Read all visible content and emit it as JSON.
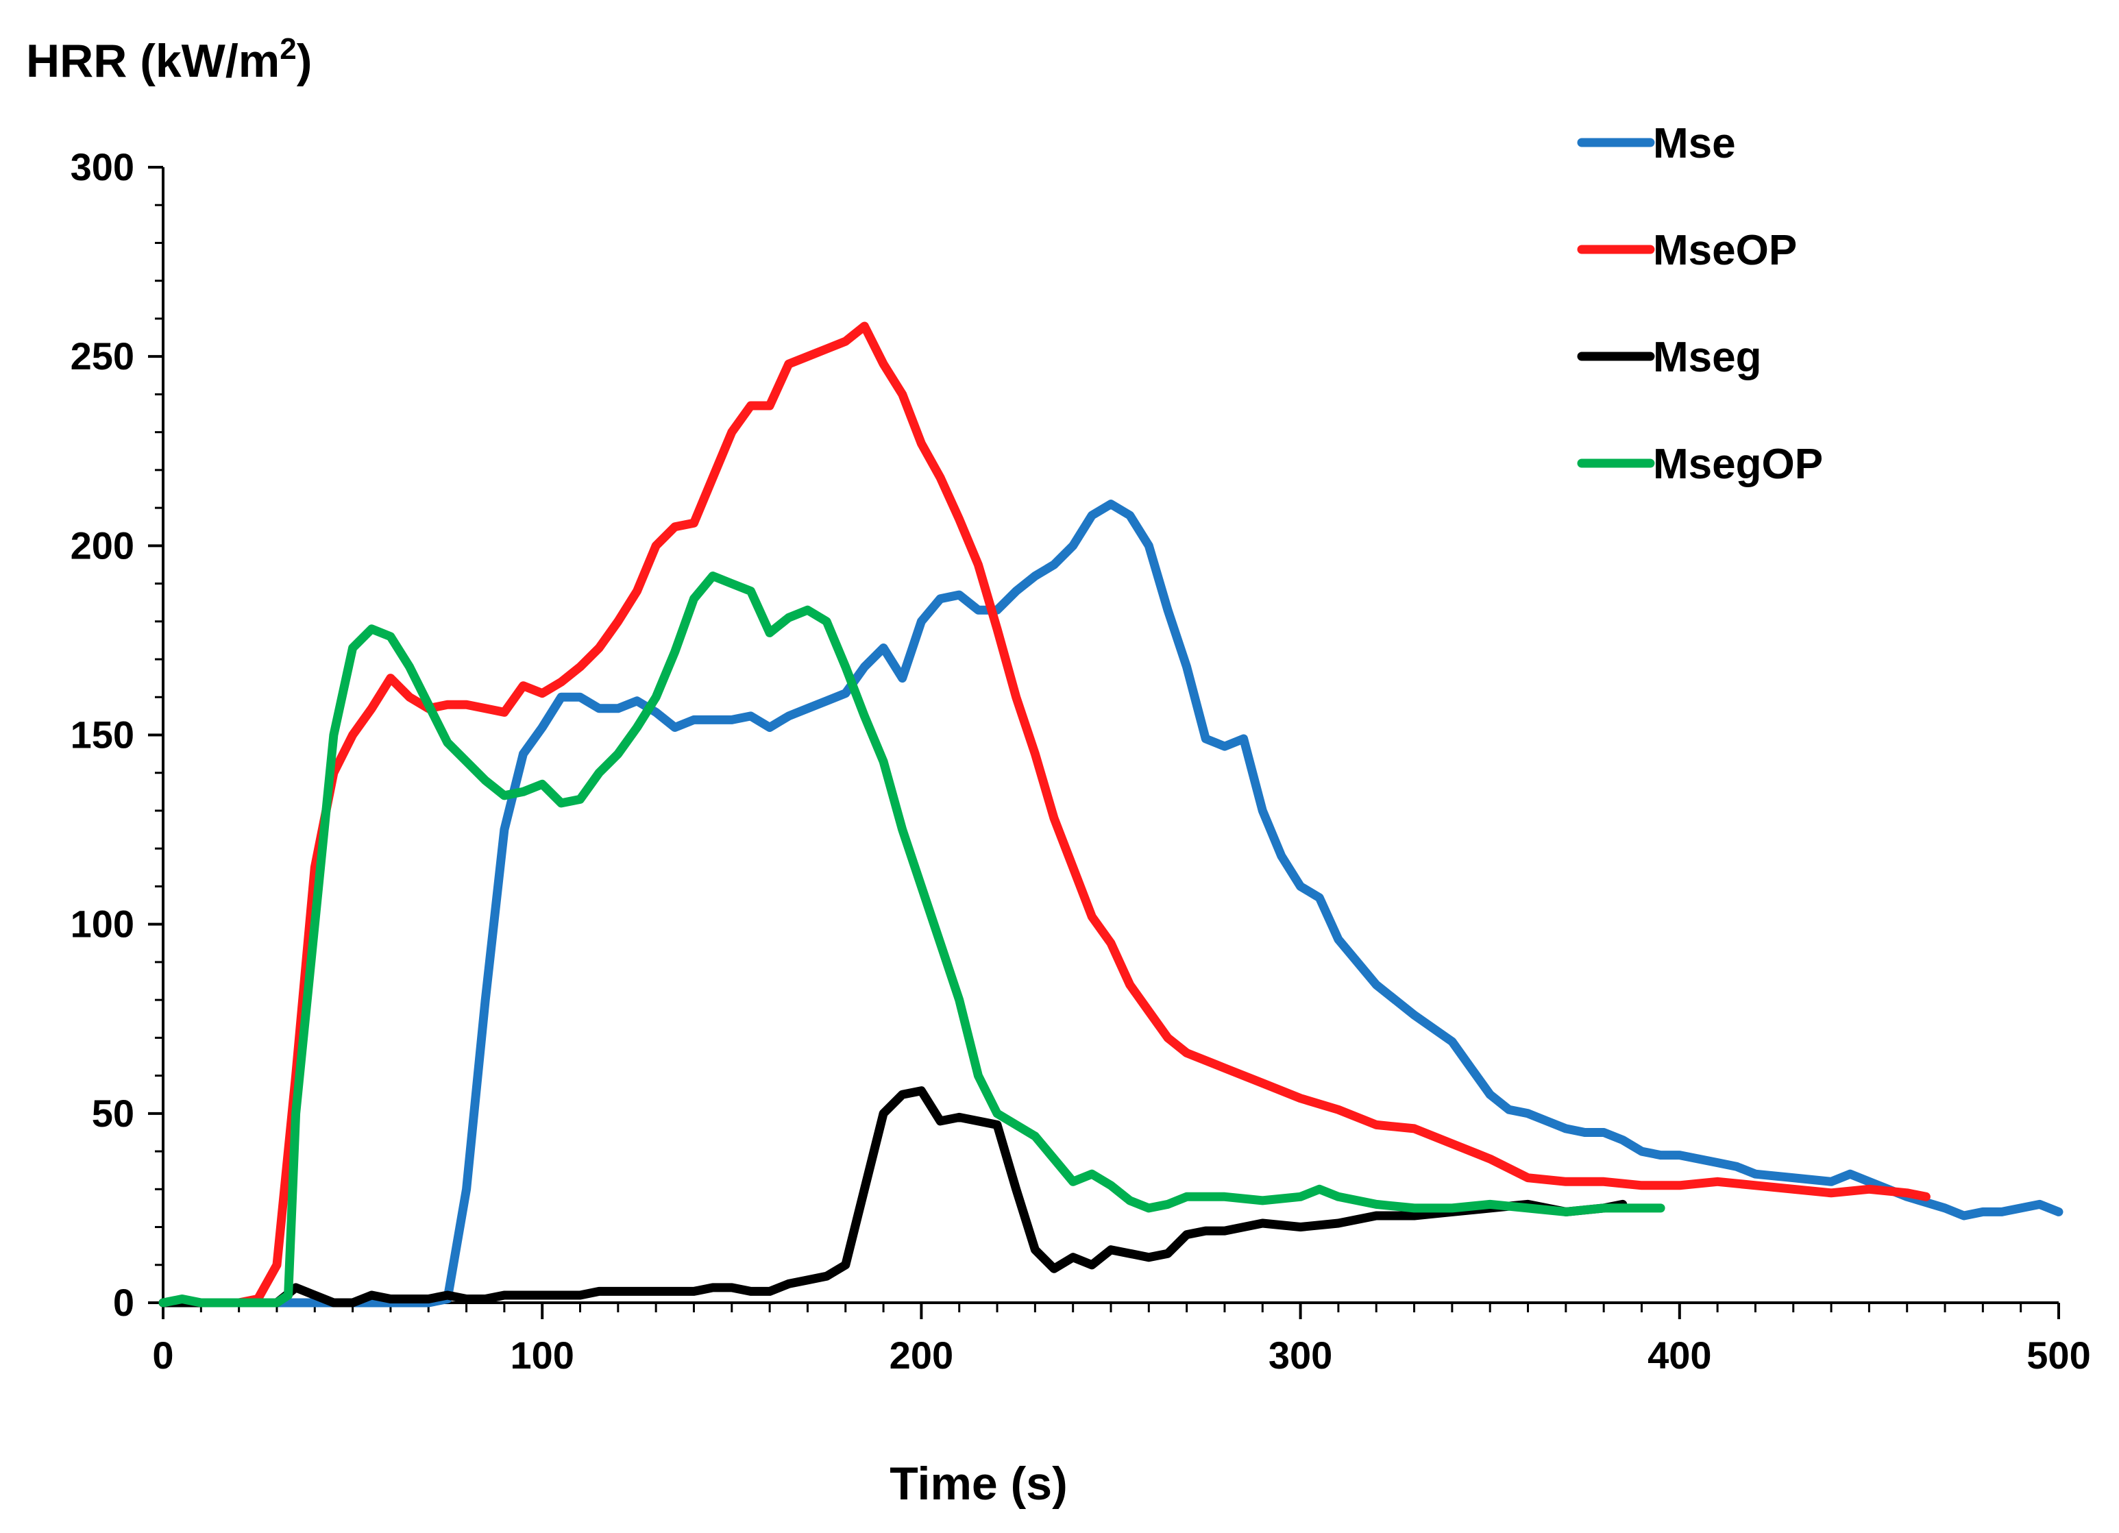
{
  "chart_data": {
    "type": "line",
    "title": "",
    "ylabel_main": "HRR (kW/m",
    "ylabel_sup": "2",
    "ylabel_end": ")",
    "xlabel": "Time (s)",
    "xlim": [
      0,
      500
    ],
    "ylim": [
      0,
      300
    ],
    "xticks": [
      0,
      100,
      200,
      300,
      400,
      500
    ],
    "yticks": [
      0,
      50,
      100,
      150,
      200,
      250,
      300
    ],
    "xtick_labels": [
      "0",
      "100",
      "200",
      "300",
      "400",
      "500"
    ],
    "ytick_labels": [
      "0",
      "50",
      "100",
      "150",
      "200",
      "250",
      "300"
    ],
    "grid": false,
    "legend_position": "top-right",
    "series": [
      {
        "name": "Mse",
        "color": "#1f77c4",
        "x": [
          0,
          5,
          10,
          20,
          30,
          40,
          50,
          60,
          70,
          75,
          80,
          85,
          90,
          95,
          100,
          105,
          110,
          115,
          120,
          125,
          130,
          135,
          140,
          145,
          150,
          155,
          160,
          165,
          170,
          175,
          180,
          185,
          190,
          195,
          200,
          205,
          210,
          215,
          220,
          225,
          230,
          235,
          240,
          245,
          250,
          255,
          260,
          265,
          270,
          275,
          280,
          285,
          290,
          295,
          300,
          305,
          310,
          315,
          320,
          330,
          340,
          345,
          350,
          355,
          360,
          365,
          370,
          375,
          380,
          385,
          390,
          395,
          400,
          410,
          415,
          420,
          430,
          440,
          445,
          450,
          460,
          470,
          475,
          480,
          485,
          490,
          495,
          500
        ],
        "y": [
          0,
          0,
          0,
          0,
          0,
          0,
          0,
          0,
          0,
          1,
          30,
          80,
          125,
          145,
          152,
          160,
          160,
          157,
          157,
          159,
          156,
          152,
          154,
          154,
          154,
          155,
          152,
          155,
          157,
          159,
          161,
          168,
          173,
          165,
          180,
          186,
          187,
          183,
          183,
          188,
          192,
          195,
          200,
          208,
          211,
          208,
          200,
          183,
          168,
          149,
          147,
          149,
          130,
          118,
          110,
          107,
          96,
          90,
          84,
          76,
          69,
          62,
          55,
          51,
          50,
          48,
          46,
          45,
          45,
          43,
          40,
          39,
          39,
          37,
          36,
          34,
          33,
          32,
          34,
          32,
          28,
          25,
          23,
          24,
          24,
          25,
          26,
          24
        ]
      },
      {
        "name": "MseOP",
        "color": "#ff1a1a",
        "x": [
          0,
          10,
          20,
          25,
          30,
          35,
          40,
          45,
          50,
          55,
          60,
          65,
          70,
          75,
          80,
          85,
          90,
          95,
          100,
          105,
          110,
          115,
          120,
          125,
          130,
          135,
          140,
          145,
          150,
          155,
          160,
          165,
          170,
          175,
          180,
          185,
          190,
          195,
          200,
          205,
          210,
          215,
          220,
          225,
          230,
          235,
          240,
          245,
          250,
          255,
          260,
          265,
          270,
          280,
          290,
          300,
          310,
          320,
          330,
          340,
          350,
          360,
          370,
          380,
          390,
          400,
          410,
          420,
          430,
          440,
          450,
          460,
          465
        ],
        "y": [
          0,
          0,
          0,
          1,
          10,
          60,
          115,
          140,
          150,
          157,
          165,
          160,
          157,
          158,
          158,
          157,
          156,
          163,
          161,
          164,
          168,
          173,
          180,
          188,
          200,
          205,
          206,
          218,
          230,
          237,
          237,
          248,
          250,
          252,
          254,
          258,
          248,
          240,
          227,
          218,
          207,
          195,
          178,
          160,
          145,
          128,
          115,
          102,
          95,
          84,
          77,
          70,
          66,
          62,
          58,
          54,
          51,
          47,
          46,
          42,
          38,
          33,
          32,
          32,
          31,
          31,
          32,
          31,
          30,
          29,
          30,
          29,
          28
        ]
      },
      {
        "name": "Mseg",
        "color": "#000000",
        "x": [
          0,
          10,
          20,
          30,
          35,
          40,
          45,
          50,
          55,
          60,
          65,
          70,
          75,
          80,
          85,
          90,
          95,
          100,
          105,
          110,
          115,
          120,
          130,
          140,
          145,
          150,
          155,
          160,
          165,
          170,
          175,
          180,
          185,
          190,
          195,
          200,
          205,
          210,
          215,
          220,
          225,
          230,
          235,
          240,
          245,
          250,
          255,
          260,
          265,
          270,
          275,
          280,
          290,
          300,
          310,
          320,
          330,
          340,
          350,
          360,
          370,
          380,
          385
        ],
        "y": [
          0,
          0,
          0,
          0,
          4,
          2,
          0,
          0,
          2,
          1,
          1,
          1,
          2,
          1,
          1,
          2,
          2,
          2,
          2,
          2,
          3,
          3,
          3,
          3,
          4,
          4,
          3,
          3,
          5,
          6,
          7,
          10,
          30,
          50,
          55,
          56,
          48,
          49,
          48,
          47,
          30,
          14,
          9,
          12,
          10,
          14,
          13,
          12,
          13,
          18,
          19,
          19,
          21,
          20,
          21,
          23,
          23,
          24,
          25,
          26,
          24,
          25,
          26
        ]
      },
      {
        "name": "MsegOP",
        "color": "#00b050",
        "x": [
          0,
          5,
          10,
          20,
          25,
          30,
          33,
          35,
          40,
          45,
          50,
          55,
          60,
          65,
          70,
          75,
          80,
          85,
          90,
          95,
          100,
          105,
          110,
          115,
          120,
          125,
          130,
          135,
          140,
          145,
          150,
          155,
          160,
          165,
          170,
          175,
          180,
          185,
          190,
          195,
          200,
          205,
          210,
          215,
          220,
          225,
          230,
          235,
          240,
          245,
          250,
          255,
          260,
          265,
          270,
          275,
          280,
          290,
          300,
          305,
          310,
          320,
          330,
          340,
          350,
          360,
          370,
          380,
          390,
          395
        ],
        "y": [
          0,
          1,
          0,
          0,
          0,
          0,
          2,
          50,
          100,
          150,
          173,
          178,
          176,
          168,
          158,
          148,
          143,
          138,
          134,
          135,
          137,
          132,
          133,
          140,
          145,
          152,
          160,
          172,
          186,
          192,
          190,
          188,
          177,
          181,
          183,
          180,
          168,
          155,
          143,
          125,
          110,
          95,
          80,
          60,
          50,
          47,
          44,
          38,
          32,
          34,
          31,
          27,
          25,
          26,
          28,
          28,
          28,
          27,
          28,
          30,
          28,
          26,
          25,
          25,
          26,
          25,
          24,
          25,
          25,
          25
        ]
      }
    ]
  }
}
